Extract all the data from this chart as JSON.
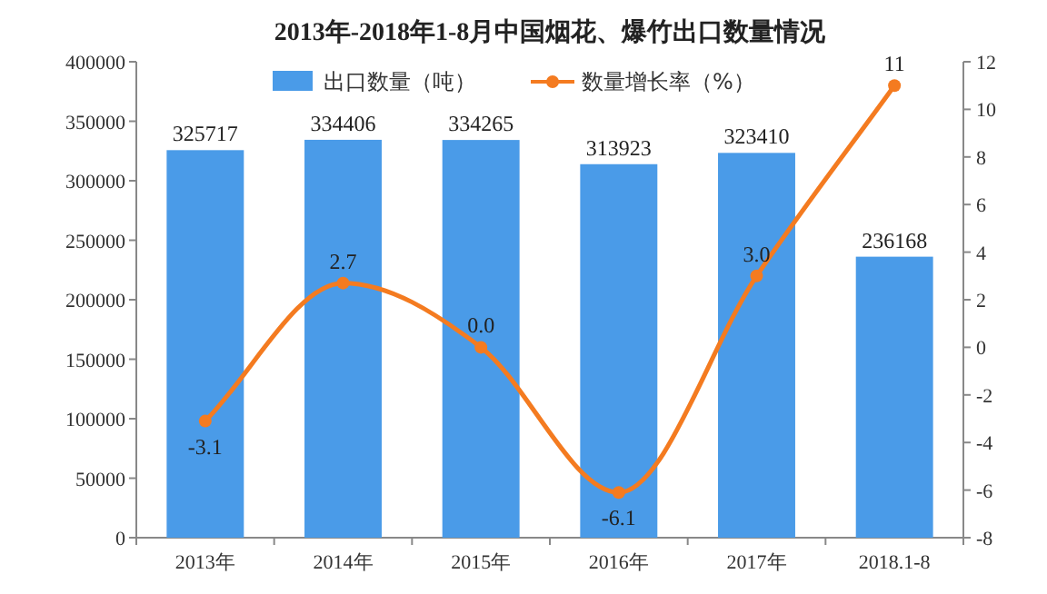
{
  "chart_data": {
    "type": "bar",
    "title": "2013年-2018年1-8月中国烟花、爆竹出口数量情况",
    "categories": [
      "2013年",
      "2014年",
      "2015年",
      "2016年",
      "2017年",
      "2018.1-8"
    ],
    "series": [
      {
        "name": "出口数量（吨）",
        "axis": "y",
        "color": "#4a9be8",
        "values": [
          325717,
          334406,
          334265,
          313923,
          323410,
          236168
        ],
        "value_labels": [
          "325717",
          "334406",
          "334265",
          "313923",
          "323410",
          "236168"
        ]
      },
      {
        "name": "数量增长率（%）",
        "type": "line",
        "axis": "y2",
        "color": "#f47b20",
        "marker": "circle",
        "values": [
          -3.1,
          2.7,
          0.0,
          -6.1,
          3.0,
          11
        ],
        "value_labels": [
          "-3.1",
          "2.7",
          "0.0",
          "-6.1",
          "3.0",
          "11"
        ]
      }
    ],
    "ylim": [
      0,
      400000
    ],
    "yticks": [
      0,
      50000,
      100000,
      150000,
      200000,
      250000,
      300000,
      350000,
      400000
    ],
    "y2lim": [
      -8,
      12
    ],
    "y2ticks": [
      -8,
      -6,
      -4,
      -2,
      0,
      2,
      4,
      6,
      8,
      10,
      12
    ],
    "legend": "top",
    "grid": false
  }
}
